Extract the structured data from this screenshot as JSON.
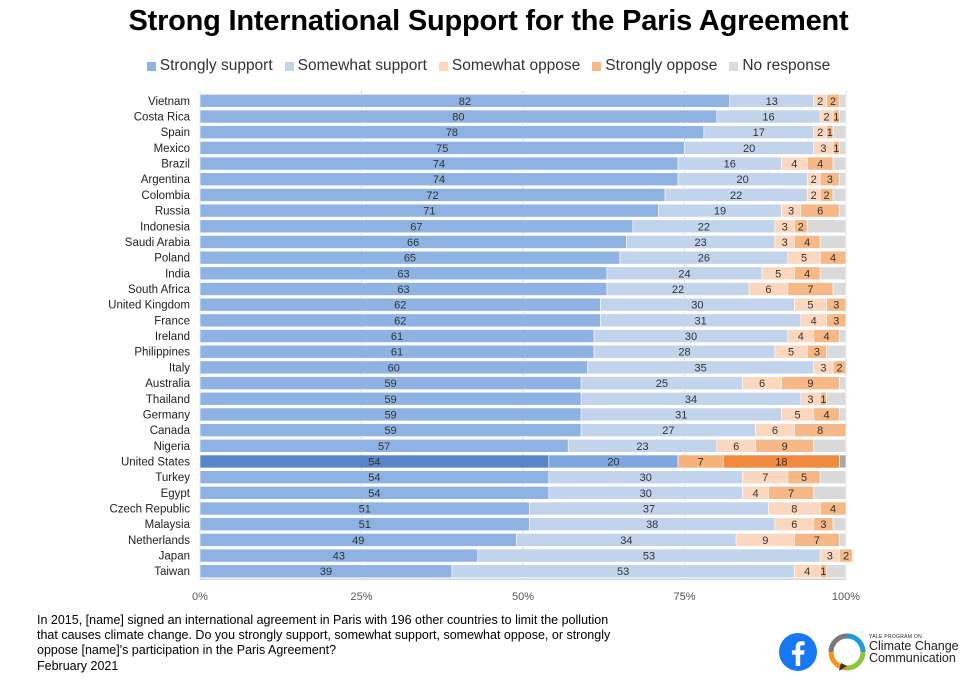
{
  "chart_data": {
    "type": "bar",
    "orientation": "horizontal",
    "stacked": true,
    "title": "Strong International Support for the Paris Agreement",
    "categories": [
      "Vietnam",
      "Costa Rica",
      "Spain",
      "Mexico",
      "Brazil",
      "Argentina",
      "Colombia",
      "Russia",
      "Indonesia",
      "Saudi Arabia",
      "Poland",
      "India",
      "South Africa",
      "United Kingdom",
      "France",
      "Ireland",
      "Philippines",
      "Italy",
      "Australia",
      "Thailand",
      "Germany",
      "Canada",
      "Nigeria",
      "United States",
      "Turkey",
      "Egypt",
      "Czech Republic",
      "Malaysia",
      "Netherlands",
      "Japan",
      "Taiwan"
    ],
    "highlight": "United States",
    "series": [
      {
        "name": "Strongly support",
        "color": "#8EB3E3",
        "highlight_color": "#5A86C9",
        "values": [
          82,
          80,
          78,
          75,
          74,
          74,
          72,
          71,
          67,
          66,
          65,
          63,
          63,
          62,
          62,
          61,
          61,
          60,
          59,
          59,
          59,
          59,
          57,
          54,
          54,
          54,
          51,
          51,
          49,
          43,
          39
        ]
      },
      {
        "name": "Somewhat support",
        "color": "#C2D4EC",
        "highlight_color": "#7FA6DE",
        "values": [
          13,
          16,
          17,
          20,
          16,
          20,
          22,
          19,
          22,
          23,
          26,
          24,
          22,
          30,
          31,
          30,
          28,
          35,
          25,
          34,
          31,
          27,
          23,
          20,
          30,
          30,
          37,
          38,
          34,
          53,
          53
        ]
      },
      {
        "name": "Somewhat oppose",
        "color": "#FAD7BE",
        "highlight_color": "#F5B27A",
        "values": [
          2,
          2,
          2,
          3,
          4,
          2,
          2,
          3,
          3,
          3,
          5,
          5,
          6,
          5,
          4,
          4,
          5,
          3,
          6,
          3,
          5,
          6,
          6,
          7,
          7,
          4,
          8,
          6,
          9,
          3,
          4
        ]
      },
      {
        "name": "Strongly oppose",
        "color": "#F5B886",
        "highlight_color": "#F08A3E",
        "values": [
          2,
          1,
          1,
          1,
          4,
          3,
          2,
          6,
          2,
          4,
          4,
          4,
          7,
          3,
          3,
          4,
          3,
          2,
          9,
          1,
          4,
          8,
          9,
          18,
          5,
          7,
          4,
          3,
          7,
          2,
          1
        ]
      },
      {
        "name": "No response",
        "color": "#DADADA",
        "highlight_color": "#A9A9A9",
        "values": [
          1,
          1,
          2,
          1,
          2,
          1,
          2,
          1,
          6,
          4,
          0,
          4,
          2,
          0,
          0,
          1,
          3,
          0,
          1,
          3,
          1,
          0,
          5,
          1,
          4,
          5,
          0,
          2,
          1,
          0,
          3
        ]
      }
    ],
    "x_ticks": [
      "0%",
      "25%",
      "50%",
      "75%",
      "100%"
    ],
    "xlim": [
      0,
      100
    ],
    "grid": true,
    "legend": "top-center"
  },
  "footnote": {
    "line1": "In 2015, [name] signed an international agreement in Paris with 196 other countries to limit the pollution",
    "line2": "that causes climate change. Do you strongly support, somewhat support, somewhat oppose, or strongly",
    "line3": "oppose [name]'s participation in the Paris Agreement?",
    "date": "February 2021"
  },
  "logos": {
    "facebook_icon": "facebook-f-icon",
    "ycc_small": "YALE PROGRAM ON",
    "ycc_line1": "Climate Change",
    "ycc_line2": "Communication"
  }
}
